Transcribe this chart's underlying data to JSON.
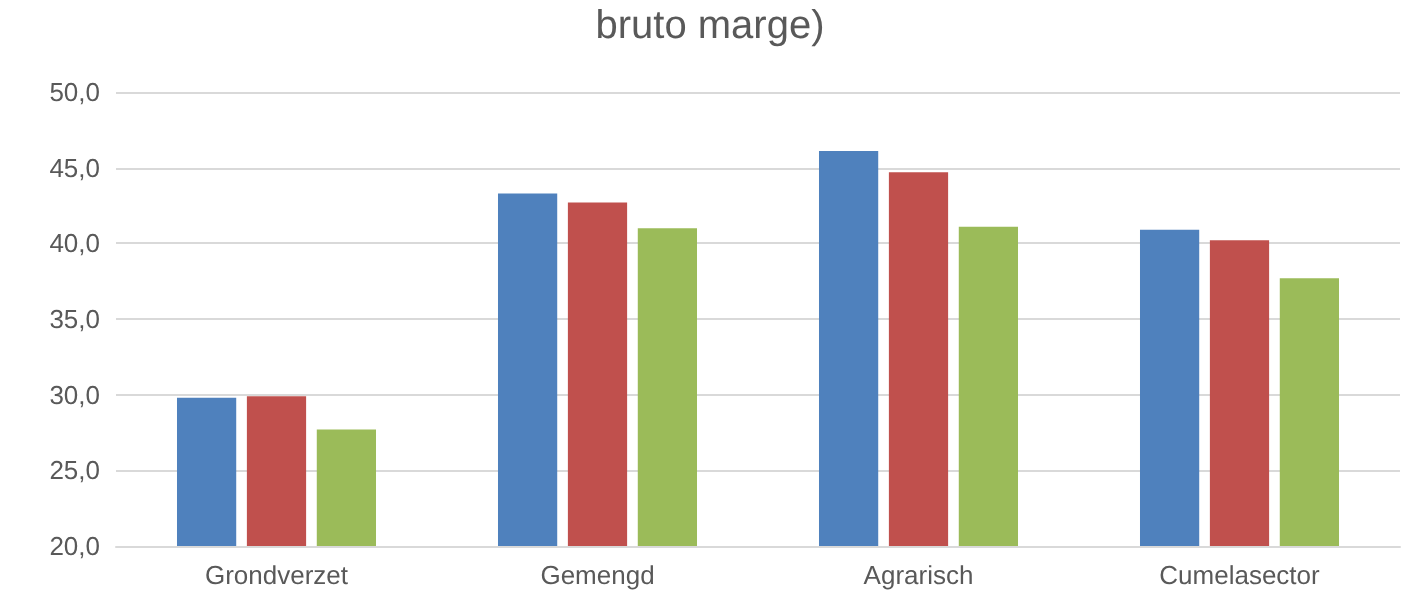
{
  "chart_data": {
    "type": "bar",
    "title": "bruto marge)",
    "categories": [
      "Grondverzet",
      "Gemengd",
      "Agrarisch",
      "Cumelasector"
    ],
    "series": [
      {
        "color": "#4f81bd",
        "values": [
          29.8,
          43.3,
          46.1,
          40.9
        ]
      },
      {
        "color": "#c0504d",
        "values": [
          29.9,
          42.7,
          44.7,
          40.2
        ]
      },
      {
        "color": "#9bbb59",
        "values": [
          27.7,
          41.0,
          41.1,
          37.7
        ]
      }
    ],
    "ylim": [
      20,
      50
    ],
    "yticks": [
      {
        "value": 20,
        "label": "20,0"
      },
      {
        "value": 25,
        "label": "25,0"
      },
      {
        "value": 30,
        "label": "30,0"
      },
      {
        "value": 35,
        "label": "35,0"
      },
      {
        "value": 40,
        "label": "40,0"
      },
      {
        "value": 45,
        "label": "45,0"
      },
      {
        "value": 50,
        "label": "50,0"
      }
    ],
    "grid": true
  }
}
